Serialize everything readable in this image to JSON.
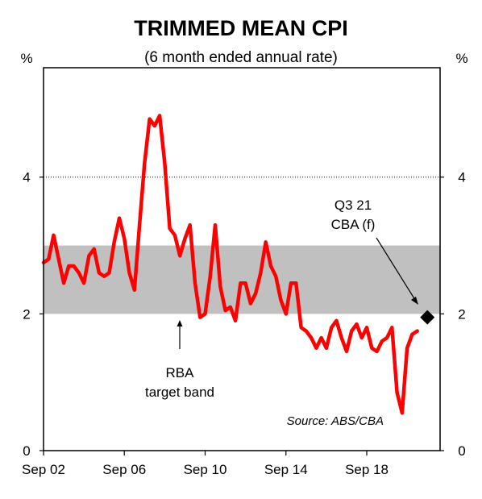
{
  "chart_data": {
    "type": "line",
    "title": "TRIMMED MEAN CPI",
    "subtitle": "(6 month ended annual rate)",
    "y_unit_left": "%",
    "y_unit_right": "%",
    "ylim": [
      0,
      5.6
    ],
    "yticks": [
      0,
      2,
      4
    ],
    "xtick_labels": [
      {
        "label": "Sep 02",
        "x": 2002.67
      },
      {
        "label": "Sep 06",
        "x": 2006.67
      },
      {
        "label": "Sep 10",
        "x": 2010.67
      },
      {
        "label": "Sep 14",
        "x": 2014.67
      },
      {
        "label": "Sep 18",
        "x": 2018.67
      }
    ],
    "xlim": [
      2002.67,
      2022.3
    ],
    "reference_line": {
      "y": 4,
      "style": "dotted"
    },
    "target_band": {
      "low": 2,
      "high": 3,
      "color": "#c0c0c0"
    },
    "series": [
      {
        "color": "#ff0000",
        "x": [
          2002.67,
          2002.92,
          2003.17,
          2003.42,
          2003.67,
          2003.92,
          2004.17,
          2004.42,
          2004.67,
          2004.92,
          2005.17,
          2005.42,
          2005.67,
          2005.92,
          2006.17,
          2006.42,
          2006.67,
          2006.92,
          2007.17,
          2007.42,
          2007.67,
          2007.92,
          2008.17,
          2008.42,
          2008.67,
          2008.92,
          2009.17,
          2009.42,
          2009.67,
          2009.92,
          2010.17,
          2010.42,
          2010.67,
          2010.92,
          2011.17,
          2011.42,
          2011.67,
          2011.92,
          2012.17,
          2012.42,
          2012.67,
          2012.92,
          2013.17,
          2013.42,
          2013.67,
          2013.92,
          2014.17,
          2014.42,
          2014.67,
          2014.92,
          2015.17,
          2015.42,
          2015.67,
          2015.92,
          2016.17,
          2016.42,
          2016.67,
          2016.92,
          2017.17,
          2017.42,
          2017.67,
          2017.92,
          2018.17,
          2018.42,
          2018.67,
          2018.92,
          2019.17,
          2019.42,
          2019.67,
          2019.92,
          2020.17,
          2020.42,
          2020.67,
          2020.92,
          2021.17
        ],
        "values": [
          2.75,
          2.8,
          3.15,
          2.8,
          2.45,
          2.7,
          2.7,
          2.6,
          2.45,
          2.85,
          2.95,
          2.6,
          2.55,
          2.6,
          3.05,
          3.4,
          3.1,
          2.6,
          2.35,
          3.3,
          4.2,
          4.85,
          4.75,
          4.9,
          4.2,
          3.25,
          3.15,
          2.85,
          3.1,
          3.3,
          2.45,
          1.95,
          2.0,
          2.55,
          3.3,
          2.4,
          2.05,
          2.1,
          1.9,
          2.45,
          2.45,
          2.15,
          2.3,
          2.6,
          3.05,
          2.7,
          2.55,
          2.2,
          2.0,
          2.45,
          2.45,
          1.8,
          1.75,
          1.65,
          1.5,
          1.65,
          1.5,
          1.8,
          1.9,
          1.65,
          1.45,
          1.75,
          1.85,
          1.65,
          1.8,
          1.5,
          1.45,
          1.6,
          1.65,
          1.8,
          0.85,
          0.55,
          1.5,
          1.7,
          1.75
        ]
      }
    ],
    "forecast_point": {
      "x": 2021.67,
      "y": 1.95,
      "marker": "diamond",
      "color": "#000000"
    },
    "annotations": {
      "band_label_line1": "RBA",
      "band_label_line2": "target band",
      "forecast_label_line1": "Q3 21",
      "forecast_label_line2": "CBA (f)",
      "source": "Source: ABS/CBA"
    }
  }
}
